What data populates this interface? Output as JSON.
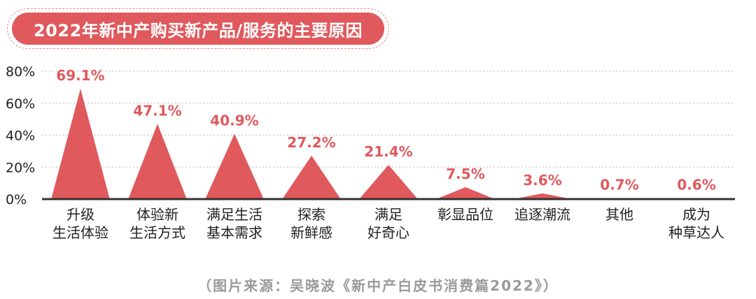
{
  "chart_data": {
    "type": "area",
    "title": "2022年新中产购买新产品/服务的主要原因",
    "categories": [
      [
        "升级",
        "生活体验"
      ],
      [
        "体验新",
        "生活方式"
      ],
      [
        "满足生活",
        "基本需求"
      ],
      [
        "探索",
        "新鲜感"
      ],
      [
        "满足",
        "好奇心"
      ],
      [
        "彰显品位"
      ],
      [
        "追逐潮流"
      ],
      [
        "其他"
      ],
      [
        "成为",
        "种草达人"
      ]
    ],
    "values": [
      69.1,
      47.1,
      40.9,
      27.2,
      21.4,
      7.5,
      3.6,
      0.7,
      0.6
    ],
    "value_labels": [
      "69.1%",
      "47.1%",
      "40.9%",
      "27.2%",
      "21.4%",
      "7.5%",
      "3.6%",
      "0.7%",
      "0.6%"
    ],
    "yticks": [
      "0%",
      "20%",
      "40%",
      "60%",
      "80%"
    ],
    "ylim": [
      0,
      80
    ],
    "grid": true,
    "source": "（图片来源：吴晓波《新中产白皮书消费篇2022》）",
    "colors": {
      "mark": "#e0595d",
      "label": "#e0595d",
      "axis": "#333333",
      "grid": "#c8c8c8",
      "text": "#222222",
      "source": "#9a9a9a"
    }
  }
}
